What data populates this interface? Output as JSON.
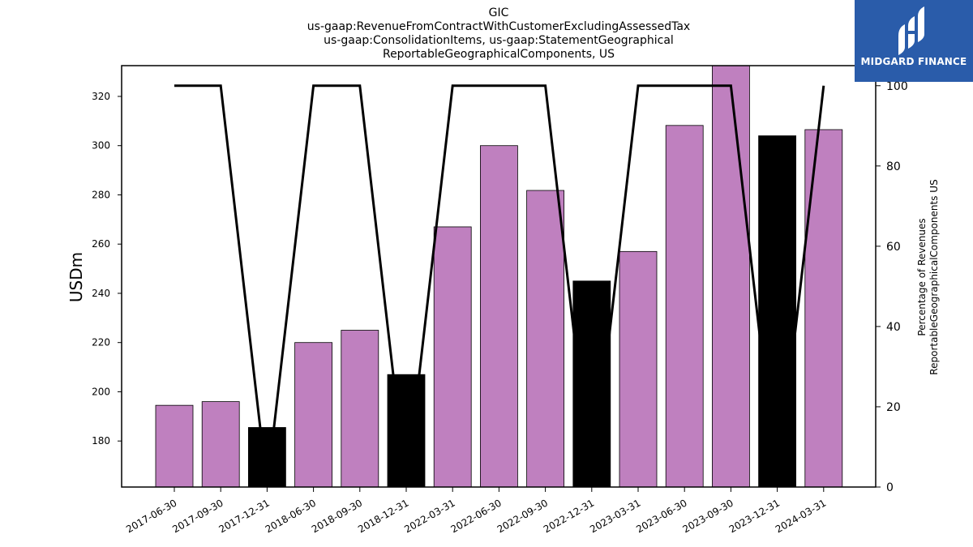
{
  "chart_data": {
    "type": "bar",
    "title_lines": [
      "GIC",
      "us-gaap:RevenueFromContractWithCustomerExcludingAssessedTax",
      "us-gaap:ConsolidationItems, us-gaap:StatementGeographical",
      "ReportableGeographicalComponents, US"
    ],
    "ylabel": "USDm",
    "y2label_lines": [
      "Percentage of Revenues",
      "ReportableGeographicalComponents US"
    ],
    "categories": [
      "2017-06-30",
      "2017-09-30",
      "2017-12-31",
      "2018-06-30",
      "2018-09-30",
      "2018-12-31",
      "2022-03-31",
      "2022-06-30",
      "2022-09-30",
      "2022-12-31",
      "2023-03-31",
      "2023-06-30",
      "2023-09-30",
      "2023-12-31",
      "2024-03-31"
    ],
    "values": [
      194.5,
      196,
      185.5,
      220,
      225,
      207,
      267,
      300,
      281.8,
      245,
      257,
      308.2,
      334,
      304,
      306.5
    ],
    "bar_colors": [
      "#bf80bf",
      "#bf80bf",
      "#000000",
      "#bf80bf",
      "#bf80bf",
      "#000000",
      "#bf80bf",
      "#bf80bf",
      "#bf80bf",
      "#000000",
      "#bf80bf",
      "#bf80bf",
      "#bf80bf",
      "#000000",
      "#bf80bf"
    ],
    "percentage": [
      100,
      100,
      0,
      100,
      100,
      0,
      100,
      100,
      100,
      0,
      100,
      100,
      100,
      0,
      100
    ],
    "ylim": [
      161.3,
      332.5
    ],
    "y2lim": [
      0,
      105
    ],
    "yticks": [
      180,
      200,
      220,
      240,
      260,
      280,
      300,
      320
    ],
    "y2ticks": [
      0,
      20,
      40,
      60,
      80,
      100
    ],
    "colors": {
      "bar_primary": "#bf80bf",
      "bar_alt": "#000000",
      "line": "#000000"
    },
    "grid": false
  },
  "logo": {
    "text": "MIDGARD FINANCE",
    "background": "#2a5caa"
  }
}
